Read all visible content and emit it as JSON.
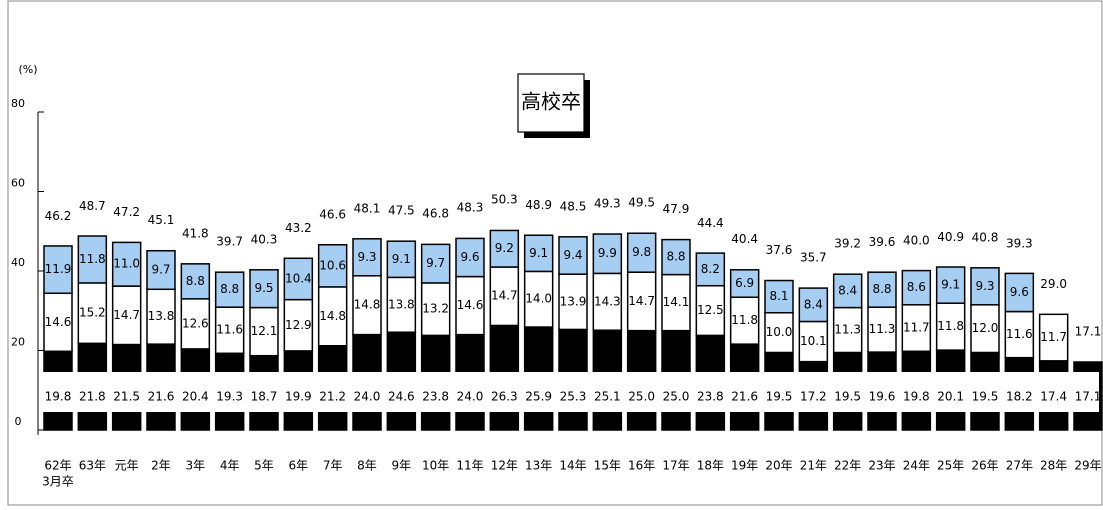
{
  "chart_data": {
    "type": "stacked-bar",
    "title": "高校卒",
    "y_unit": "(%)",
    "categories": [
      "62年",
      "63年",
      "元年",
      "2年",
      "3年",
      "4年",
      "5年",
      "6年",
      "7年",
      "8年",
      "9年",
      "10年",
      "11年",
      "12年",
      "13年",
      "14年",
      "15年",
      "16年",
      "17年",
      "18年",
      "19年",
      "20年",
      "21年",
      "22年",
      "23年",
      "24年",
      "25年",
      "26年",
      "27年",
      "28年",
      "29年"
    ],
    "x_label_note": "3月卒",
    "series": [
      {
        "color": "#000000",
        "label_row": "gap",
        "values": [
          19.8,
          21.8,
          21.5,
          21.6,
          20.4,
          19.3,
          18.7,
          19.9,
          21.2,
          24.0,
          24.6,
          23.8,
          24.0,
          26.3,
          25.9,
          25.3,
          25.1,
          25.0,
          25.0,
          23.8,
          21.6,
          19.5,
          17.2,
          19.5,
          19.6,
          19.8,
          20.1,
          19.5,
          18.2,
          17.4,
          17.1
        ],
        "value_labels": [
          "19.8",
          "21.8",
          "21.5",
          "21.6",
          "20.4",
          "19.3",
          "18.7",
          "19.9",
          "21.2",
          "24.0",
          "24.6",
          "23.8",
          "24.0",
          "26.3",
          "25.9",
          "25.3",
          "25.1",
          "25.0",
          "25.0",
          "23.8",
          "21.6",
          "19.5",
          "17.2",
          "19.5",
          "19.6",
          "19.8",
          "20.1",
          "19.5",
          "18.2",
          "17.4",
          "17.1"
        ]
      },
      {
        "color": "#ffffff",
        "label_row": "inside",
        "values": [
          14.6,
          15.2,
          14.7,
          13.8,
          12.6,
          11.6,
          12.1,
          12.9,
          14.8,
          14.8,
          13.8,
          13.2,
          14.6,
          14.7,
          14.0,
          13.9,
          14.3,
          14.7,
          14.1,
          12.5,
          11.8,
          10.0,
          10.1,
          11.3,
          11.3,
          11.7,
          11.8,
          12.0,
          11.6,
          11.7,
          null
        ],
        "value_labels": [
          "14.6",
          "15.2",
          "14.7",
          "13.8",
          "12.6",
          "11.6",
          "12.1",
          "12.9",
          "14.8",
          "14.8",
          "13.8",
          "13.2",
          "14.6",
          "14.7",
          "14.0",
          "13.9",
          "14.3",
          "14.7",
          "14.1",
          "12.5",
          "11.8",
          "10.0",
          "10.1",
          "11.3",
          "11.3",
          "11.7",
          "11.8",
          "12.0",
          "11.6",
          "11.7",
          null
        ]
      },
      {
        "color": "#a6cdf2",
        "label_row": "inside",
        "values": [
          11.9,
          11.8,
          11.0,
          9.7,
          8.8,
          8.8,
          9.5,
          10.4,
          10.6,
          9.3,
          9.1,
          9.7,
          9.6,
          9.2,
          9.1,
          9.4,
          9.9,
          9.8,
          8.8,
          8.2,
          6.9,
          8.1,
          8.4,
          8.4,
          8.8,
          8.6,
          9.1,
          9.3,
          9.6,
          null,
          null
        ],
        "value_labels": [
          "11.9",
          "11.8",
          "11.0",
          "9.7",
          "8.8",
          "8.8",
          "9.5",
          "10.4",
          "10.6",
          "9.3",
          "9.1",
          "9.7",
          "9.6",
          "9.2",
          "9.1",
          "9.4",
          "9.9",
          "9.8",
          "8.8",
          "8.2",
          "6.9",
          "8.1",
          "8.4",
          "8.4",
          "8.8",
          "8.6",
          "9.1",
          "9.3",
          "9.6",
          null,
          null
        ]
      }
    ],
    "totals": {
      "values": [
        46.2,
        48.7,
        47.2,
        45.1,
        41.8,
        39.7,
        40.3,
        43.2,
        46.6,
        48.1,
        47.5,
        46.8,
        48.3,
        50.3,
        48.9,
        48.5,
        49.3,
        49.5,
        47.9,
        44.4,
        40.4,
        37.6,
        35.7,
        39.2,
        39.6,
        40.0,
        40.9,
        40.8,
        39.3,
        29.0,
        17.1
      ],
      "value_labels": [
        "46.2",
        "48.7",
        "47.2",
        "45.1",
        "41.8",
        "39.7",
        "40.3",
        "43.2",
        "46.6",
        "48.1",
        "47.5",
        "46.8",
        "48.3",
        "50.3",
        "48.9",
        "48.5",
        "49.3",
        "49.5",
        "47.9",
        "44.4",
        "40.4",
        "37.6",
        "35.7",
        "39.2",
        "39.6",
        "40.0",
        "40.9",
        "40.8",
        "39.3",
        "29.0",
        "17.1"
      ]
    },
    "ylim": [
      0,
      80
    ],
    "yticks": [
      0,
      20,
      40,
      60,
      80
    ]
  }
}
